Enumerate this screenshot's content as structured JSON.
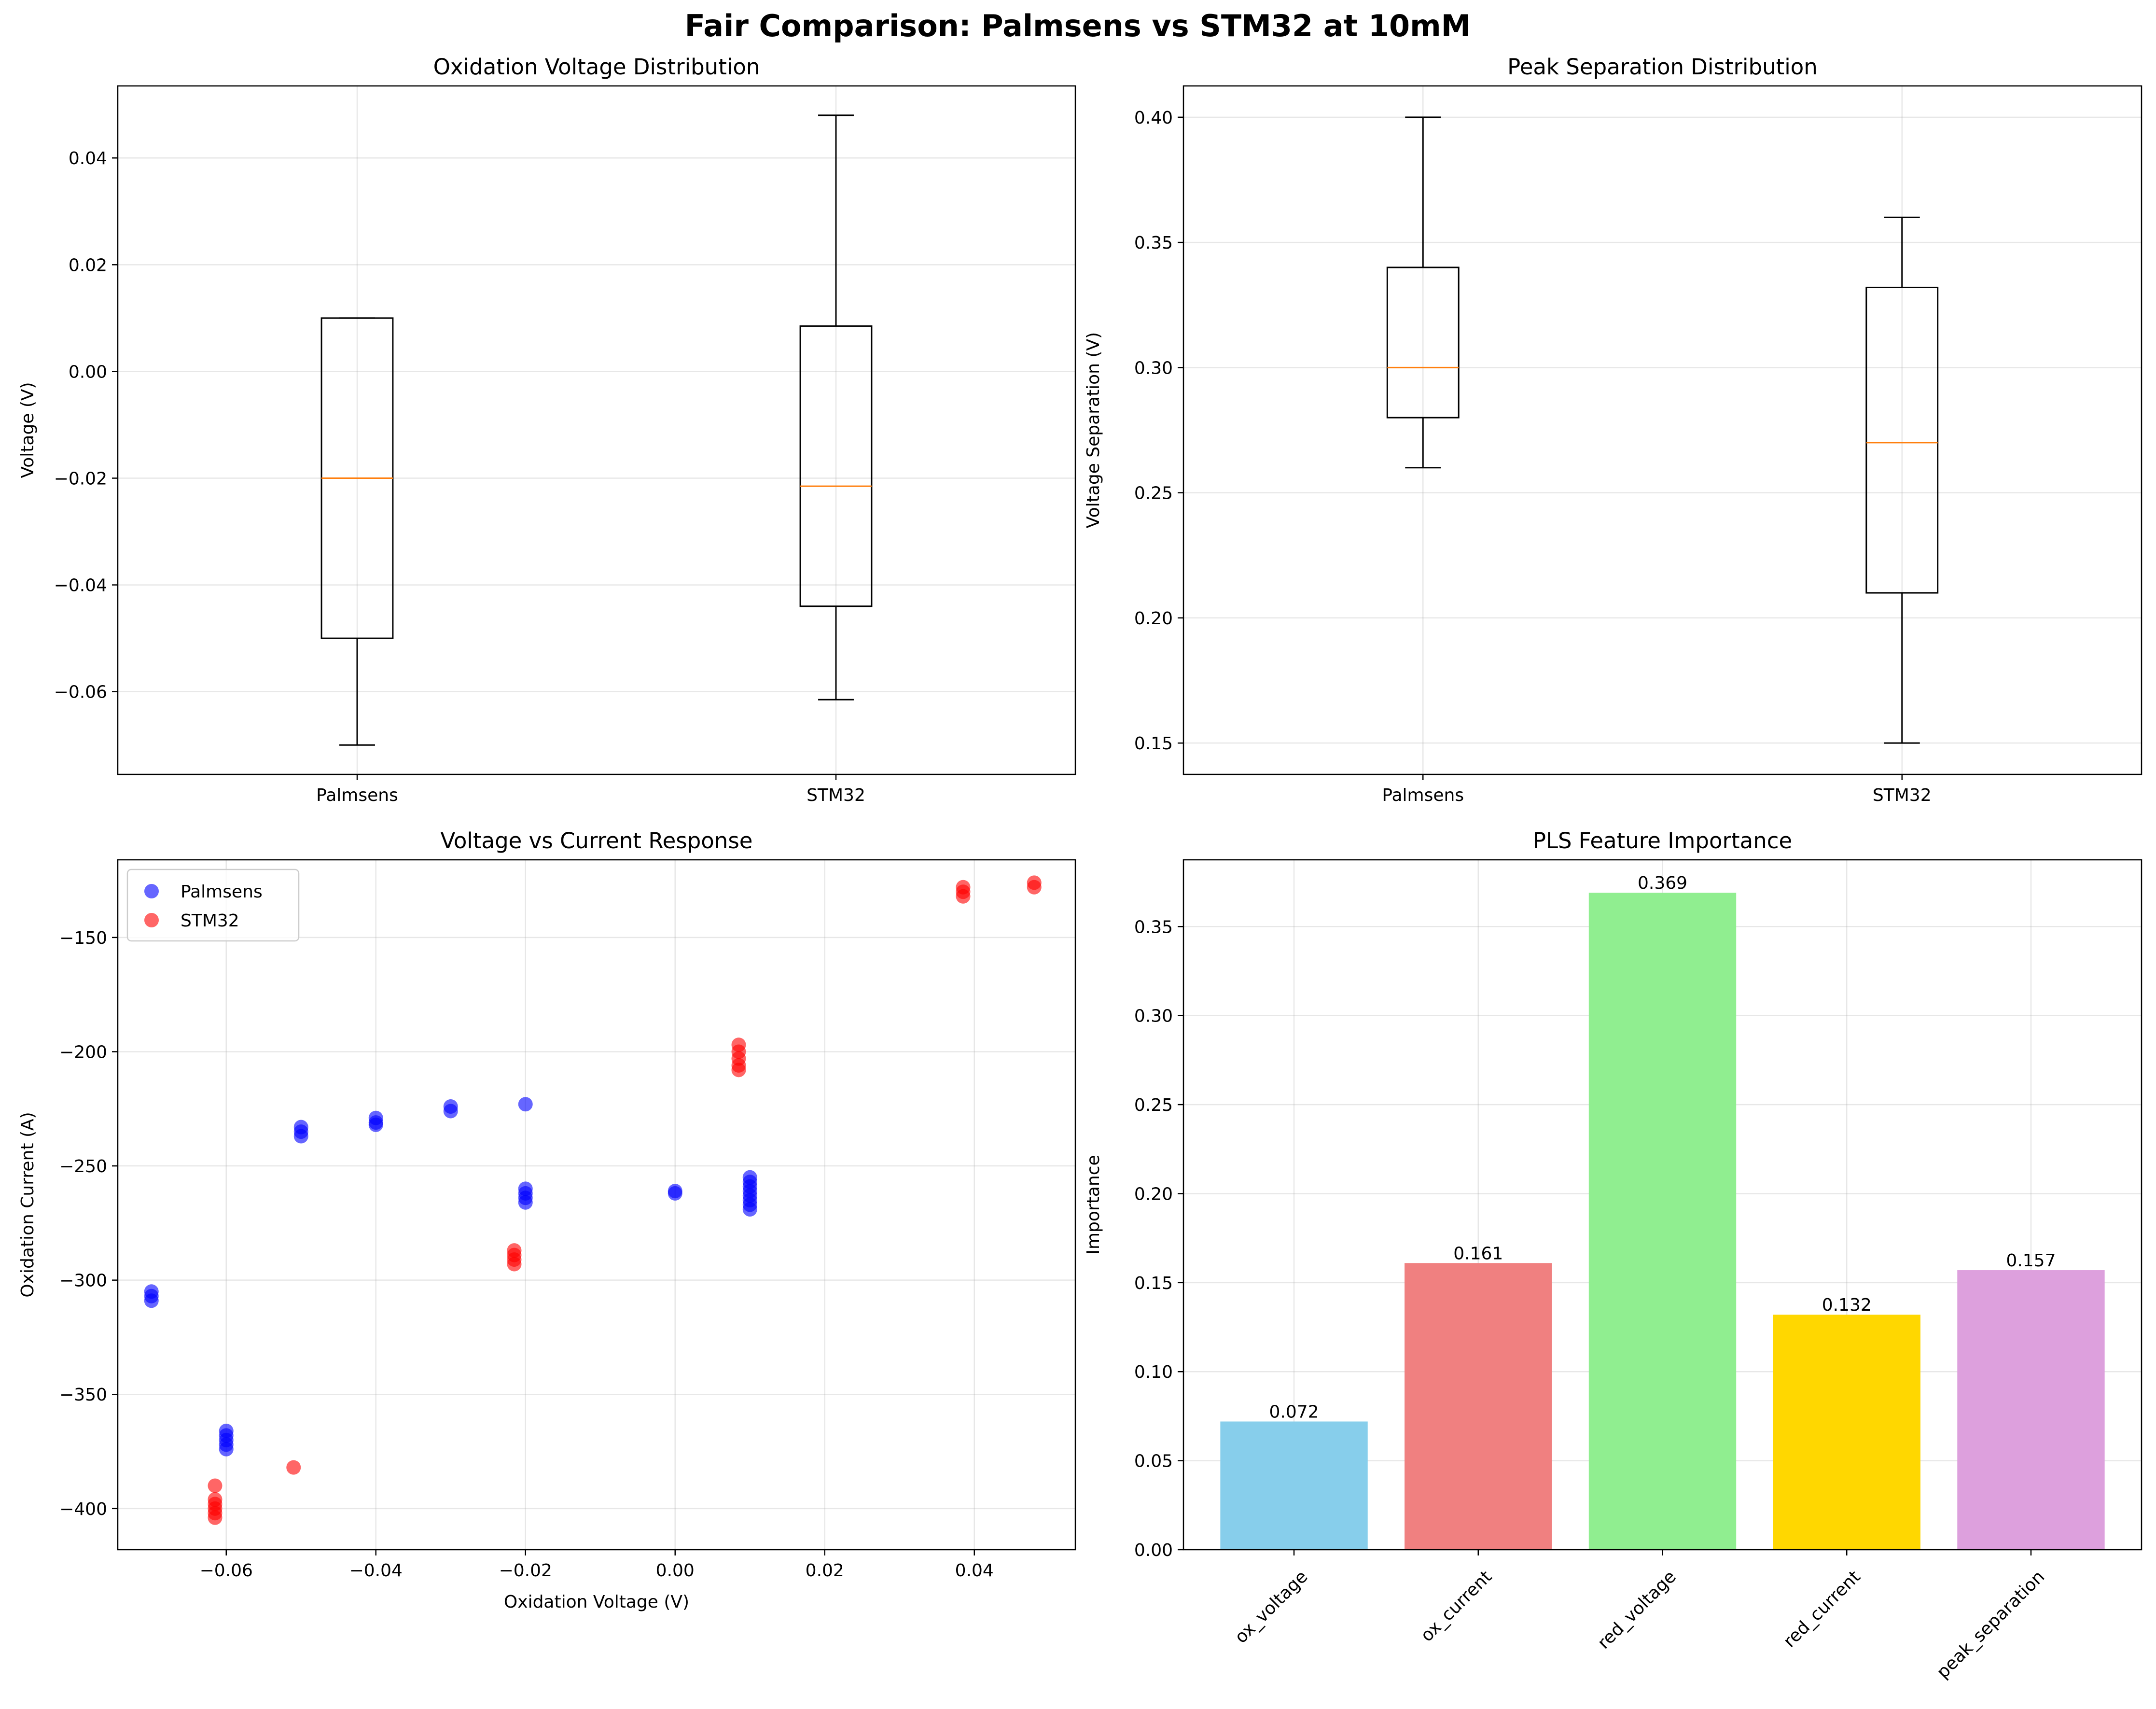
{
  "figure": {
    "title": "Fair Comparison: Palmsens vs STM32 at 10mM"
  },
  "chart_data": [
    {
      "type": "box",
      "title": "Oxidation Voltage Distribution",
      "xlabel": "",
      "ylabel": "Voltage (V)",
      "categories": [
        "Palmsens",
        "STM32"
      ],
      "boxes": [
        {
          "name": "Palmsens",
          "whislo": -0.07,
          "q1": -0.05,
          "med": -0.02,
          "q3": 0.01,
          "whishi": 0.01
        },
        {
          "name": "STM32",
          "whislo": -0.0615,
          "q1": -0.044,
          "med": -0.0215,
          "q3": 0.0085,
          "whishi": 0.048
        }
      ],
      "ylim": [
        -0.0755,
        0.0535
      ],
      "yticks": [
        -0.06,
        -0.04,
        -0.02,
        0.0,
        0.02,
        0.04
      ],
      "ytick_labels": [
        "−0.06",
        "−0.04",
        "−0.02",
        "0.00",
        "0.02",
        "0.04"
      ],
      "grid": true,
      "colors": {
        "box": "#000000",
        "median": "#ff7f0e"
      }
    },
    {
      "type": "box",
      "title": "Peak Separation Distribution",
      "xlabel": "",
      "ylabel": "Voltage Separation (V)",
      "categories": [
        "Palmsens",
        "STM32"
      ],
      "boxes": [
        {
          "name": "Palmsens",
          "whislo": 0.26,
          "q1": 0.28,
          "med": 0.3,
          "q3": 0.34,
          "whishi": 0.4
        },
        {
          "name": "STM32",
          "whislo": 0.15,
          "q1": 0.21,
          "med": 0.27,
          "q3": 0.332,
          "whishi": 0.36
        }
      ],
      "ylim": [
        0.1375,
        0.4125
      ],
      "yticks": [
        0.15,
        0.2,
        0.25,
        0.3,
        0.35,
        0.4
      ],
      "ytick_labels": [
        "0.15",
        "0.20",
        "0.25",
        "0.30",
        "0.35",
        "0.40"
      ],
      "grid": true,
      "colors": {
        "box": "#000000",
        "median": "#ff7f0e"
      }
    },
    {
      "type": "scatter",
      "title": "Voltage vs Current Response",
      "xlabel": "Oxidation Voltage (V)",
      "ylabel": "Oxidation Current (A)",
      "xlim": [
        -0.0745,
        0.0535
      ],
      "ylim": [
        -418,
        -116
      ],
      "xticks": [
        -0.06,
        -0.04,
        -0.02,
        0.0,
        0.02,
        0.04
      ],
      "xtick_labels": [
        "−0.06",
        "−0.04",
        "−0.02",
        "0.00",
        "0.02",
        "0.04"
      ],
      "yticks": [
        -400,
        -350,
        -300,
        -250,
        -200,
        -150
      ],
      "ytick_labels": [
        "−400",
        "−350",
        "−300",
        "−250",
        "−200",
        "−150"
      ],
      "grid": true,
      "legend": "upper left",
      "series": [
        {
          "name": "Palmsens",
          "color": "#0000ff",
          "points": [
            [
              -0.07,
              -305
            ],
            [
              -0.07,
              -307
            ],
            [
              -0.07,
              -309
            ],
            [
              -0.06,
              -366
            ],
            [
              -0.06,
              -368
            ],
            [
              -0.06,
              -370
            ],
            [
              -0.06,
              -372
            ],
            [
              -0.06,
              -374
            ],
            [
              -0.05,
              -233
            ],
            [
              -0.05,
              -235
            ],
            [
              -0.05,
              -237
            ],
            [
              -0.04,
              -229
            ],
            [
              -0.04,
              -231
            ],
            [
              -0.04,
              -232
            ],
            [
              -0.03,
              -224
            ],
            [
              -0.03,
              -226
            ],
            [
              -0.02,
              -223
            ],
            [
              -0.02,
              -260
            ],
            [
              -0.02,
              -262
            ],
            [
              -0.02,
              -264
            ],
            [
              -0.02,
              -266
            ],
            [
              0.0,
              -261
            ],
            [
              0.0,
              -262
            ],
            [
              0.01,
              -255
            ],
            [
              0.01,
              -257
            ],
            [
              0.01,
              -259
            ],
            [
              0.01,
              -261
            ],
            [
              0.01,
              -263
            ],
            [
              0.01,
              -265
            ],
            [
              0.01,
              -267
            ],
            [
              0.01,
              -269
            ]
          ]
        },
        {
          "name": "STM32",
          "color": "#ff0000",
          "points": [
            [
              -0.0615,
              -390
            ],
            [
              -0.0615,
              -396
            ],
            [
              -0.0615,
              -398
            ],
            [
              -0.0615,
              -400
            ],
            [
              -0.0615,
              -402
            ],
            [
              -0.0615,
              -404
            ],
            [
              -0.051,
              -382
            ],
            [
              -0.0215,
              -287
            ],
            [
              -0.0215,
              -289
            ],
            [
              -0.0215,
              -291
            ],
            [
              -0.0215,
              -293
            ],
            [
              0.0085,
              -197
            ],
            [
              0.0085,
              -200
            ],
            [
              0.0085,
              -203
            ],
            [
              0.0085,
              -206
            ],
            [
              0.0085,
              -208
            ],
            [
              0.0385,
              -128
            ],
            [
              0.0385,
              -130
            ],
            [
              0.0385,
              -132
            ],
            [
              0.048,
              -126
            ],
            [
              0.048,
              -128
            ]
          ]
        }
      ]
    },
    {
      "type": "bar",
      "title": "PLS Feature Importance",
      "xlabel": "",
      "ylabel": "Importance",
      "categories": [
        "ox_voltage",
        "ox_current",
        "red_voltage",
        "red_current",
        "peak_separation"
      ],
      "values": [
        0.072,
        0.161,
        0.369,
        0.132,
        0.157
      ],
      "value_labels": [
        "0.072",
        "0.161",
        "0.369",
        "0.132",
        "0.157"
      ],
      "colors": [
        "#87ceeb",
        "#f08080",
        "#90ee90",
        "#ffd700",
        "#dda0dd"
      ],
      "ylim": [
        0,
        0.3875
      ],
      "yticks": [
        0,
        0.05,
        0.1,
        0.15,
        0.2,
        0.25,
        0.3,
        0.35
      ],
      "ytick_labels": [
        "0.00",
        "0.05",
        "0.10",
        "0.15",
        "0.20",
        "0.25",
        "0.30",
        "0.35"
      ],
      "grid": true
    }
  ]
}
